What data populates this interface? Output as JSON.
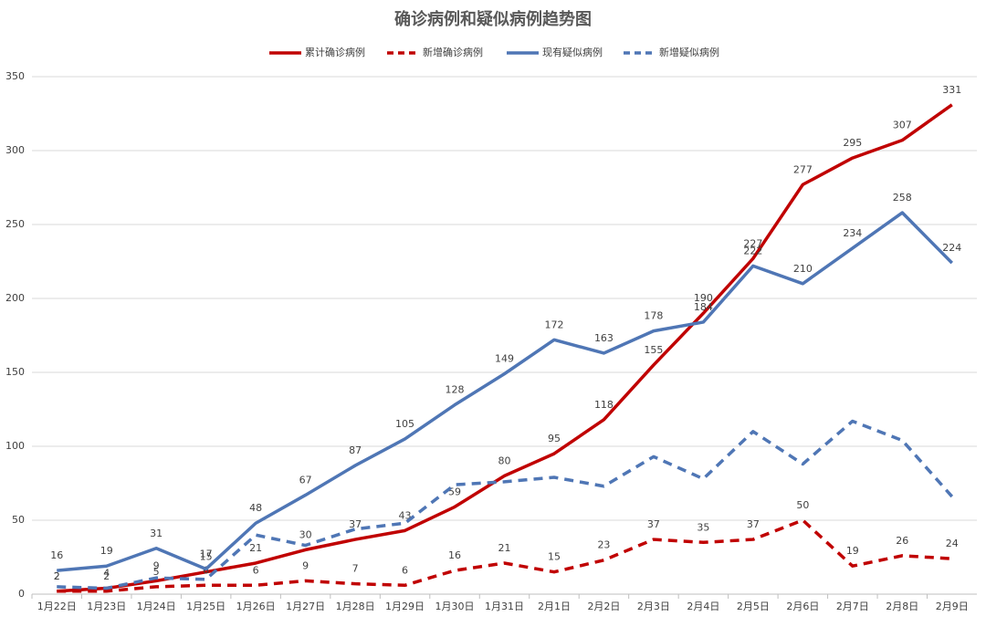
{
  "chart_data": {
    "type": "line",
    "title": "确诊病例和疑似病例趋势图",
    "categories": [
      "1月22日",
      "1月23日",
      "1月24日",
      "1月25日",
      "1月26日",
      "1月27日",
      "1月28日",
      "1月29日",
      "1月30日",
      "1月31日",
      "2月1日",
      "2月2日",
      "2月3日",
      "2月4日",
      "2月5日",
      "2月6日",
      "2月7日",
      "2月8日",
      "2月9日"
    ],
    "series": [
      {
        "name": "累计确诊病例",
        "color": "#c00000",
        "dash": false,
        "data_labels": true,
        "values": [
          2,
          4,
          9,
          15,
          21,
          30,
          37,
          43,
          59,
          80,
          95,
          118,
          155,
          190,
          227,
          277,
          295,
          307,
          331
        ]
      },
      {
        "name": "新增确诊病例",
        "color": "#c00000",
        "dash": true,
        "data_labels": true,
        "values": [
          2,
          2,
          5,
          6,
          6,
          9,
          7,
          6,
          16,
          21,
          15,
          23,
          37,
          35,
          37,
          50,
          19,
          26,
          24
        ]
      },
      {
        "name": "现有疑似病例",
        "color": "#4f76b5",
        "dash": false,
        "data_labels": true,
        "values": [
          16,
          19,
          31,
          17,
          48,
          67,
          87,
          105,
          128,
          149,
          172,
          163,
          178,
          184,
          222,
          210,
          234,
          258,
          224
        ]
      },
      {
        "name": "新增疑似病例",
        "color": "#4f76b5",
        "dash": true,
        "data_labels": false,
        "values": [
          5,
          4,
          11,
          10,
          40,
          33,
          44,
          48,
          74,
          76,
          79,
          73,
          93,
          78,
          110,
          88,
          117,
          104,
          66
        ]
      }
    ],
    "ylim": [
      0,
      350
    ],
    "yticks": [
      0,
      50,
      100,
      150,
      200,
      250,
      300,
      350
    ],
    "grid": true,
    "legend": "top"
  }
}
